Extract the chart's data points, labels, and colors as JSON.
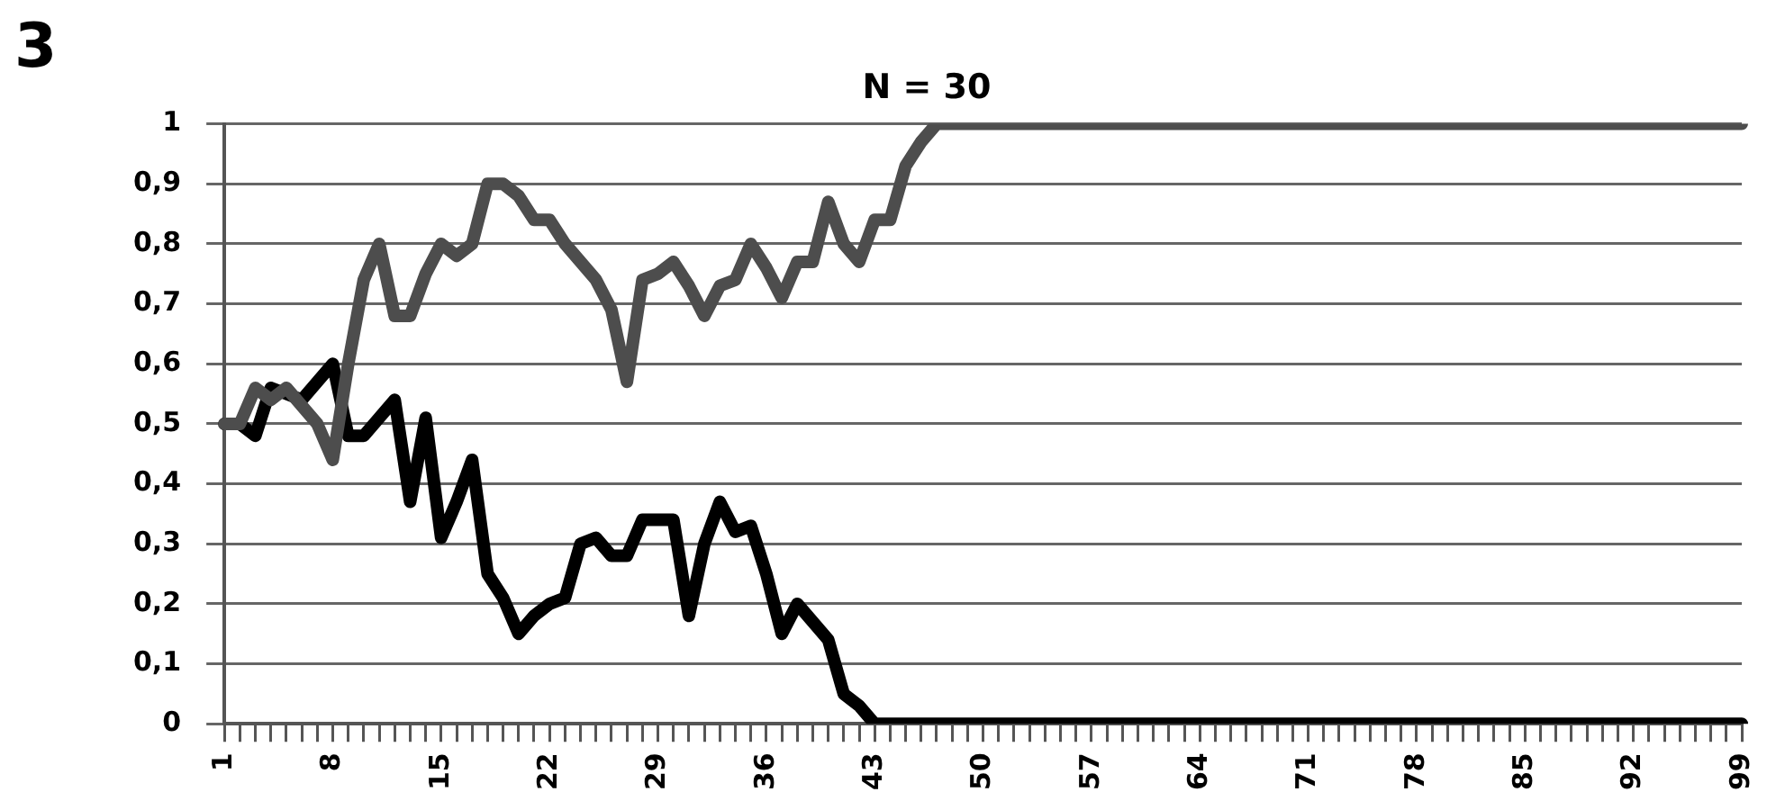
{
  "chart_data": {
    "type": "line",
    "title": "N = 30",
    "annotations": [
      "3"
    ],
    "categories": [
      "1",
      null,
      null,
      null,
      null,
      null,
      null,
      "8",
      null,
      null,
      null,
      null,
      null,
      null,
      "15",
      null,
      null,
      null,
      null,
      null,
      null,
      "22",
      null,
      null,
      null,
      null,
      null,
      null,
      "29",
      null,
      null,
      null,
      null,
      null,
      null,
      "36",
      null,
      null,
      null,
      null,
      null,
      null,
      "43",
      null,
      null,
      null,
      null,
      null,
      null,
      "50",
      null,
      null,
      null,
      null,
      null,
      null,
      "57",
      null,
      null,
      null,
      null,
      null,
      null,
      "64",
      null,
      null,
      null,
      null,
      null,
      null,
      "71",
      null,
      null,
      null,
      null,
      null,
      null,
      "78",
      null,
      null,
      null,
      null,
      null,
      null,
      "85",
      null,
      null,
      null,
      null,
      null,
      null,
      "92",
      null,
      null,
      null,
      null,
      null,
      null,
      "99"
    ],
    "series": [
      {
        "color": "#4d4d4d",
        "values": [
          0.5,
          0.5,
          0.56,
          0.54,
          0.56,
          0.53,
          0.5,
          0.44,
          0.6,
          0.74,
          0.8,
          0.68,
          0.68,
          0.75,
          0.8,
          0.78,
          0.8,
          0.9,
          0.9,
          0.88,
          0.84,
          0.84,
          0.8,
          0.77,
          0.74,
          0.69,
          0.57,
          0.74,
          0.75,
          0.77,
          0.73,
          0.68,
          0.73,
          0.74,
          0.8,
          0.76,
          0.71,
          0.77,
          0.77,
          0.87,
          0.8,
          0.77,
          0.84,
          0.84,
          0.93,
          0.97,
          1,
          1,
          1,
          1,
          1,
          1,
          1,
          1,
          1,
          1,
          1,
          1,
          1,
          1,
          1,
          1,
          1,
          1,
          1,
          1,
          1,
          1,
          1,
          1,
          1,
          1,
          1,
          1,
          1,
          1,
          1,
          1,
          1,
          1,
          1,
          1,
          1,
          1,
          1,
          1,
          1,
          1,
          1,
          1,
          1,
          1,
          1,
          1,
          1,
          1,
          1,
          1,
          1
        ]
      },
      {
        "color": "#000000",
        "values": [
          0.5,
          0.5,
          0.48,
          0.56,
          0.55,
          0.54,
          0.57,
          0.6,
          0.48,
          0.48,
          0.51,
          0.54,
          0.37,
          0.51,
          0.31,
          0.37,
          0.44,
          0.25,
          0.21,
          0.15,
          0.18,
          0.2,
          0.21,
          0.3,
          0.31,
          0.28,
          0.28,
          0.34,
          0.34,
          0.34,
          0.18,
          0.3,
          0.37,
          0.32,
          0.33,
          0.25,
          0.15,
          0.2,
          0.17,
          0.14,
          0.05,
          0.03,
          0,
          0,
          0,
          0,
          0,
          0,
          0,
          0,
          0,
          0,
          0,
          0,
          0,
          0,
          0,
          0,
          0,
          0,
          0,
          0,
          0,
          0,
          0,
          0,
          0,
          0,
          0,
          0,
          0,
          0,
          0,
          0,
          0,
          0,
          0,
          0,
          0,
          0,
          0,
          0,
          0,
          0,
          0,
          0,
          0,
          0,
          0,
          0,
          0,
          0,
          0,
          0,
          0,
          0,
          0,
          0,
          0
        ]
      }
    ],
    "ylim": [
      0,
      1
    ],
    "yticks": [
      0,
      {
        "value": 0.1,
        "label": "0,1"
      },
      {
        "value": 0.2,
        "label": "0,2"
      },
      {
        "value": 0.3,
        "label": "0,3"
      },
      {
        "value": 0.4,
        "label": "0,4"
      },
      {
        "value": 0.5,
        "label": "0,5"
      },
      {
        "value": 0.6,
        "label": "0,6"
      },
      {
        "value": 0.7,
        "label": "0,7"
      },
      {
        "value": 0.8,
        "label": "0,8"
      },
      {
        "value": 0.9,
        "label": "0,9"
      },
      1
    ],
    "grid": "y",
    "marker": "none",
    "line_style": "solid"
  }
}
